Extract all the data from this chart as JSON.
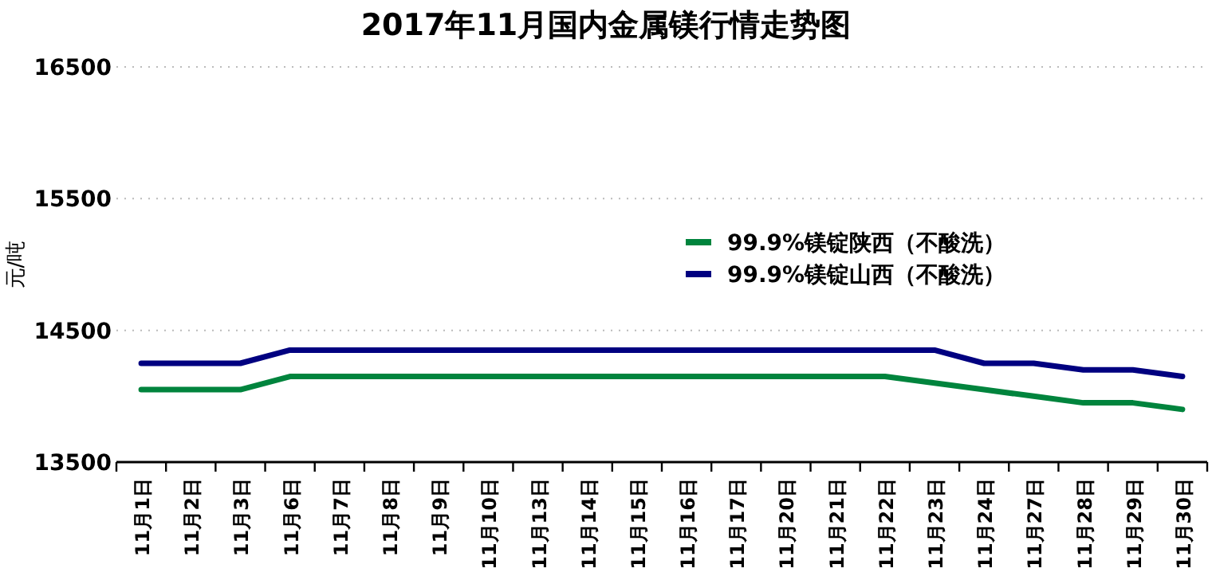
{
  "chart_data": {
    "type": "line",
    "title": "2017年11月国内金属镁行情走势图",
    "ylabel": "元/吨",
    "categories": [
      "11月1日",
      "11月2日",
      "11月3日",
      "11月6日",
      "11月7日",
      "11月8日",
      "11月9日",
      "11月10日",
      "11月13日",
      "11月14日",
      "11月15日",
      "11月16日",
      "11月17日",
      "11月20日",
      "11月21日",
      "11月22日",
      "11月23日",
      "11月24日",
      "11月27日",
      "11月28日",
      "11月29日",
      "11月30日"
    ],
    "series": [
      {
        "name": "99.9%镁锭陕西（不酸洗）",
        "color": "#00843d",
        "values": [
          14050,
          14050,
          14050,
          14150,
          14150,
          14150,
          14150,
          14150,
          14150,
          14150,
          14150,
          14150,
          14150,
          14150,
          14150,
          14150,
          14100,
          14050,
          14000,
          13950,
          13950,
          13900
        ]
      },
      {
        "name": "99.9%镁锭山西（不酸洗）",
        "color": "#000080",
        "values": [
          14250,
          14250,
          14250,
          14350,
          14350,
          14350,
          14350,
          14350,
          14350,
          14350,
          14350,
          14350,
          14350,
          14350,
          14350,
          14350,
          14350,
          14250,
          14250,
          14200,
          14200,
          14150
        ]
      }
    ],
    "ylim": [
      13500,
      16500
    ],
    "yticks": [
      13500,
      14500,
      15500,
      16500
    ],
    "grid": "y",
    "legend": "right"
  }
}
